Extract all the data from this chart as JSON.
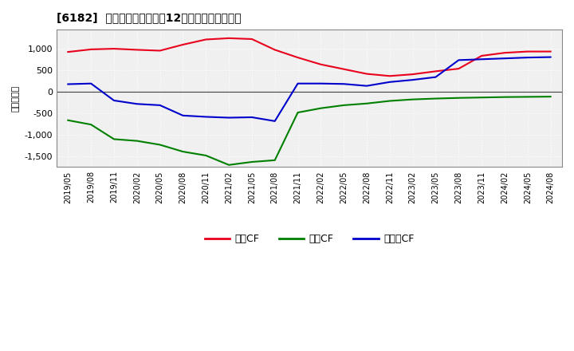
{
  "title": "[6182]  キャッシュフローの12か月移動合計の推移",
  "ylabel": "（百万円）",
  "x_labels": [
    "2019/05",
    "2019/08",
    "2019/11",
    "2020/02",
    "2020/05",
    "2020/08",
    "2020/11",
    "2021/02",
    "2021/05",
    "2021/08",
    "2021/11",
    "2022/02",
    "2022/05",
    "2022/08",
    "2022/11",
    "2023/02",
    "2023/05",
    "2023/08",
    "2023/11",
    "2024/02",
    "2024/05",
    "2024/08"
  ],
  "operating_cf": [
    930,
    990,
    1005,
    980,
    960,
    1100,
    1220,
    1250,
    1230,
    980,
    800,
    640,
    530,
    420,
    370,
    410,
    480,
    540,
    840,
    910,
    940,
    940
  ],
  "investing_cf": [
    -660,
    -760,
    -1100,
    -1140,
    -1230,
    -1390,
    -1480,
    -1700,
    -1630,
    -1590,
    -480,
    -380,
    -310,
    -270,
    -210,
    -175,
    -155,
    -140,
    -130,
    -120,
    -115,
    -110
  ],
  "free_cf": [
    180,
    195,
    -200,
    -280,
    -310,
    -550,
    -580,
    -600,
    -590,
    -680,
    195,
    195,
    185,
    140,
    230,
    280,
    345,
    740,
    760,
    780,
    800,
    810
  ],
  "color_operating": "#e8001c",
  "color_investing": "#008000",
  "color_free": "#0000cc",
  "ylim_min": -1750,
  "ylim_max": 1450,
  "yticks": [
    -1500,
    -1000,
    -500,
    0,
    500,
    1000
  ],
  "bg_color": "#ffffff",
  "plot_bg_color": "#f0f0f0",
  "grid_color": "#ffffff",
  "legend_labels": [
    "営業CF",
    "投資CF",
    "フリーCF"
  ]
}
